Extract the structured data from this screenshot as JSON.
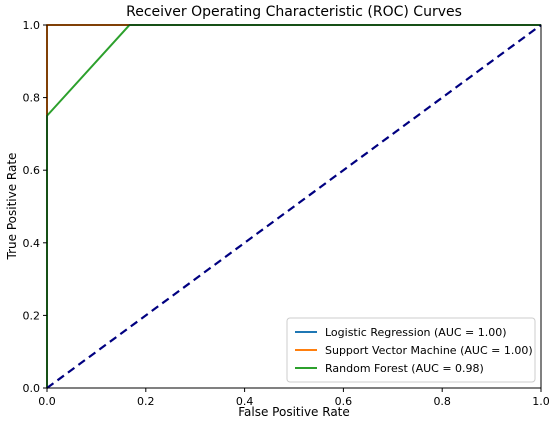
{
  "chart_data": {
    "type": "line",
    "title": "Receiver Operating Characteristic (ROC) Curves",
    "xlabel": "False Positive Rate",
    "ylabel": "True Positive Rate",
    "xlim": [
      0.0,
      1.0
    ],
    "ylim": [
      0.0,
      1.0
    ],
    "xticks": [
      "0.0",
      "0.2",
      "0.4",
      "0.6",
      "0.8",
      "1.0"
    ],
    "yticks": [
      "0.0",
      "0.2",
      "0.4",
      "0.6",
      "0.8",
      "1.0"
    ],
    "grid": false,
    "legend_position": "lower-right",
    "series": [
      {
        "name": "Logistic Regression (AUC = 1.00)",
        "color": "#1f77b4",
        "style": "solid",
        "x": [
          0.0,
          0.0,
          1.0
        ],
        "y": [
          0.0,
          1.0,
          1.0
        ]
      },
      {
        "name": "Support Vector Machine (AUC = 1.00)",
        "color": "#ff7f0e",
        "style": "solid",
        "x": [
          0.0,
          0.0,
          0.0,
          0.167,
          1.0
        ],
        "y": [
          0.0,
          0.0,
          1.0,
          1.0,
          1.0
        ]
      },
      {
        "name": "Random Forest (AUC = 0.98)",
        "color": "#2ca02c",
        "style": "solid",
        "x": [
          0.0,
          0.0,
          0.167,
          1.0
        ],
        "y": [
          0.0,
          0.75,
          1.0,
          1.0
        ]
      },
      {
        "name": "",
        "color": "#000080",
        "style": "dashed",
        "x": [
          0.0,
          1.0
        ],
        "y": [
          0.0,
          1.0
        ]
      }
    ]
  }
}
